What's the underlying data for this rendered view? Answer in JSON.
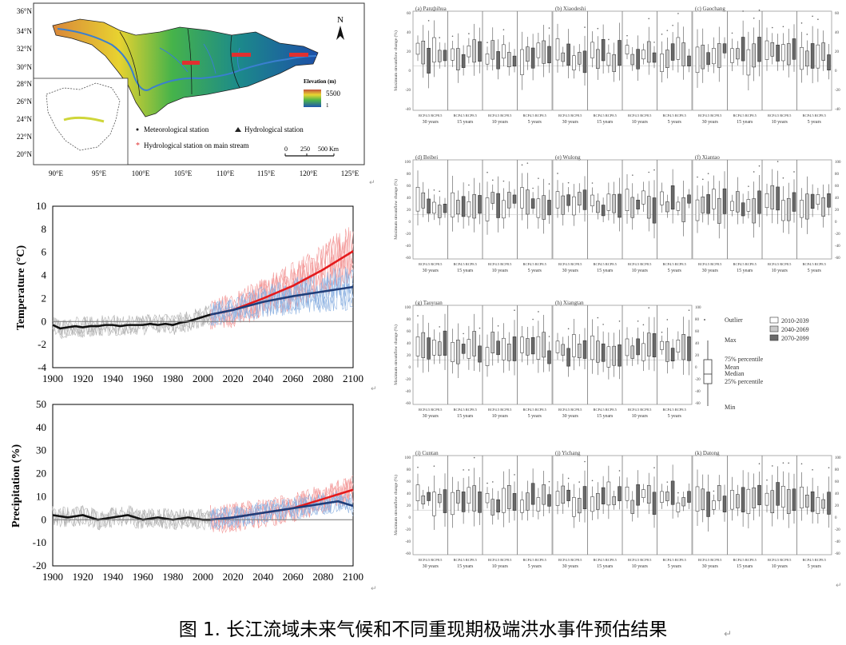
{
  "caption": "图 1. 长江流域未来气候和不同重现期极端洪水事件预估结果",
  "map": {
    "lat_labels": [
      "36°N",
      "34°N",
      "32°N",
      "30°N",
      "28°N",
      "26°N",
      "24°N",
      "22°N",
      "20°N"
    ],
    "lon_labels": [
      "90°E",
      "95°E",
      "100°E",
      "105°E",
      "110°E",
      "115°E",
      "120°E",
      "125°E"
    ],
    "north": "N",
    "legend_title": "Elevation (m)",
    "legend_high": "5500",
    "legend_low": "1",
    "met_station": "Meteorological station",
    "hydro_station": "Hydrological station",
    "main_stream_station": "Hydrological station on main stream",
    "scale_labels": [
      "0",
      "250",
      "500 Km"
    ],
    "colors": {
      "hydro_main": "#e03030",
      "river": "#3a7fd0"
    }
  },
  "temperature_chart": {
    "ylabel": "Temperature (°C)",
    "yticks": [
      "10",
      "8",
      "6",
      "4",
      "2",
      "0",
      "-2",
      "-4"
    ],
    "xticks": [
      "1900",
      "1920",
      "1940",
      "1960",
      "1980",
      "2000",
      "2020",
      "2040",
      "2060",
      "2080",
      "2100"
    ]
  },
  "precip_chart": {
    "ylabel": "Precipitation (%)",
    "yticks": [
      "50",
      "40",
      "30",
      "20",
      "10",
      "0",
      "-10",
      "-20"
    ],
    "xticks": [
      "1900",
      "1920",
      "1940",
      "1960",
      "1980",
      "2000",
      "2020",
      "2040",
      "2060",
      "2080",
      "2100"
    ]
  },
  "chart_data": [
    {
      "type": "line",
      "ylabel": "Temperature (°C)",
      "xlim": [
        1900,
        2100
      ],
      "ylim": [
        -4,
        10
      ],
      "grid": false,
      "series": [
        {
          "x": [
            1900,
            1905,
            1910,
            1915,
            1920,
            1925,
            1930,
            1935,
            1940,
            1945,
            1950,
            1955,
            1960,
            1965,
            1970,
            1975,
            1980,
            1985,
            1990,
            1995,
            2000,
            2005
          ],
          "values": [
            -0.3,
            -0.6,
            -0.5,
            -0.4,
            -0.5,
            -0.4,
            -0.4,
            -0.3,
            -0.3,
            -0.4,
            -0.3,
            -0.3,
            -0.3,
            -0.2,
            -0.3,
            -0.2,
            -0.3,
            -0.1,
            0.0,
            0.2,
            0.4,
            0.6
          ]
        },
        {
          "x": [
            2005,
            2020,
            2040,
            2060,
            2080,
            2100
          ],
          "values": [
            0.6,
            1.0,
            2.0,
            3.1,
            4.5,
            6.1
          ]
        },
        {
          "x": [
            2005,
            2020,
            2040,
            2060,
            2080,
            2100
          ],
          "values": [
            0.6,
            1.0,
            1.7,
            2.2,
            2.6,
            3.0
          ]
        }
      ]
    },
    {
      "type": "line",
      "ylabel": "Precipitation (%)",
      "xlim": [
        1900,
        2100
      ],
      "ylim": [
        -20,
        50
      ],
      "grid": false,
      "series": [
        {
          "x": [
            1900,
            1910,
            1920,
            1930,
            1940,
            1950,
            1960,
            1970,
            1980,
            1990,
            2000,
            2005
          ],
          "values": [
            2,
            1,
            2,
            0,
            1,
            2,
            0,
            1,
            0,
            1,
            0,
            0
          ]
        },
        {
          "x": [
            2005,
            2020,
            2040,
            2060,
            2080,
            2090,
            2100
          ],
          "values": [
            0,
            1,
            3,
            5,
            9,
            11,
            13
          ]
        },
        {
          "x": [
            2005,
            2020,
            2040,
            2060,
            2080,
            2090,
            2100
          ],
          "values": [
            0,
            1,
            3,
            5,
            7,
            8,
            6
          ]
        }
      ]
    }
  ],
  "boxgrid": {
    "stations": [
      "(a) Panzhihua",
      "(b) Xiaodeshi",
      "(c) Gaochang",
      "(d) Beibei",
      "(e) Wulong",
      "(f) Xiantao",
      "(g) Taoyuan",
      "(h) Xiangtan",
      "(i) Cuntan",
      "(j) Yichang",
      "(k) Datong"
    ],
    "ylabel": "Maximum streamflow change (%)",
    "rcp_label": "RCP4.5 RCP8.5",
    "return_periods": [
      "30 years",
      "15 years",
      "10 years",
      "5 years"
    ],
    "ticks_a": [
      "60",
      "40",
      "20",
      "0",
      "-20",
      "-40"
    ],
    "ticks_d": [
      "100",
      "80",
      "60",
      "40",
      "20",
      "0",
      "-20",
      "-40",
      "-60"
    ]
  },
  "box_legend": {
    "outlier": "Outlier",
    "max": "Max",
    "p75": "75% percentile",
    "mean": "Mean",
    "median": "Median",
    "p25": "25% percentile",
    "min": "Min",
    "periods": [
      "2010-2039",
      "2040-2069",
      "2070-2099"
    ]
  }
}
